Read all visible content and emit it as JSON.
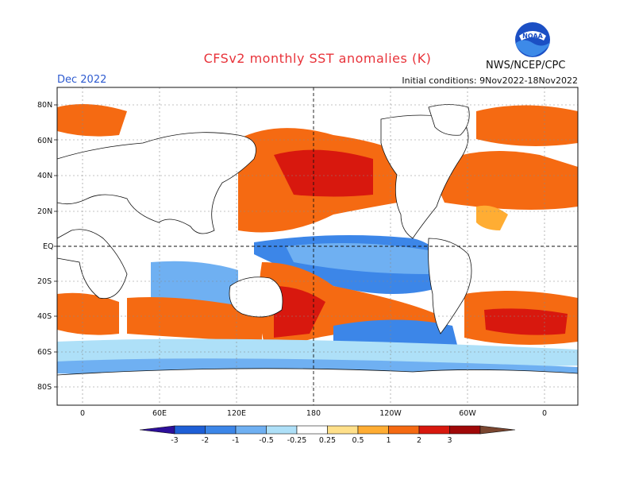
{
  "header": {
    "title": "CFSv2 monthly SST anomalies (K)",
    "month": "Dec 2022",
    "initial_conditions": "Initial conditions: 9Nov2022-18Nov2022",
    "agency": "NWS/NCEP/CPC",
    "logo_text": "NOAA"
  },
  "axes": {
    "lat_labels": [
      "80N",
      "60N",
      "40N",
      "20N",
      "EQ",
      "20S",
      "40S",
      "60S",
      "80S"
    ],
    "lon_labels": [
      "0",
      "60E",
      "120E",
      "180",
      "120W",
      "60W",
      "0"
    ]
  },
  "colorbar": {
    "tick_labels": [
      "-3",
      "-2",
      "-1",
      "-0.5",
      "-0.25",
      "0.25",
      "0.5",
      "1",
      "2",
      "3"
    ],
    "colors": [
      "#2d0f9a",
      "#1e5fd6",
      "#3c86e8",
      "#6fb0f2",
      "#aee0f8",
      "#ffffff",
      "#ffe08a",
      "#ffad33",
      "#f56a12",
      "#d8180e",
      "#a00808",
      "#7a4630"
    ]
  },
  "map_colors": {
    "ocean_base": "#ffffff",
    "land": "#ffffff",
    "coast": "#111111",
    "frame": "#111111",
    "grid": "#888888"
  }
}
